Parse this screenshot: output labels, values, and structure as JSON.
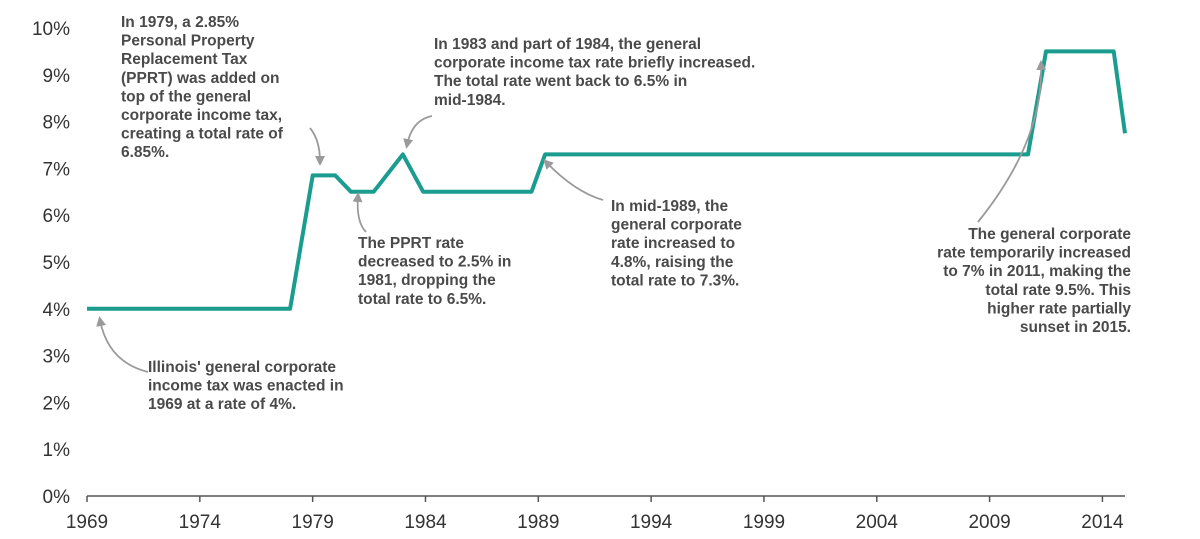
{
  "chart_data": {
    "type": "line",
    "title": "",
    "xlabel": "",
    "ylabel": "",
    "xlim": [
      1969,
      2015
    ],
    "ylim": [
      0,
      10
    ],
    "x_ticks": [
      "1969",
      "1974",
      "1979",
      "1984",
      "1989",
      "1994",
      "1999",
      "2004",
      "2009",
      "2014"
    ],
    "y_ticks": [
      "0%",
      "1%",
      "2%",
      "3%",
      "4%",
      "5%",
      "6%",
      "7%",
      "8%",
      "9%",
      "10%"
    ],
    "grid": false,
    "line_color": "#1a9c8f",
    "series": [
      {
        "name": "",
        "x": [
          1969,
          1978,
          1979,
          1980,
          1980.7,
          1981.7,
          1983,
          1983.9,
          1988.7,
          1989.3,
          2010.7,
          2011.5,
          2014.5,
          2015
        ],
        "y": [
          4.0,
          4.0,
          6.85,
          6.85,
          6.5,
          6.5,
          7.3,
          6.5,
          6.5,
          7.3,
          7.3,
          9.5,
          9.5,
          7.75
        ]
      }
    ],
    "annotations": [
      {
        "lines": [
          "Illinois' general corporate",
          "income tax was enacted in",
          "1969 at a rate of 4%."
        ]
      },
      {
        "lines": [
          "In 1979, a 2.85%",
          "Personal Property",
          "Replacement Tax",
          "(PPRT) was added on",
          "top of the general",
          "corporate income tax,",
          "creating a total rate of",
          "6.85%."
        ]
      },
      {
        "lines": [
          "The PPRT rate",
          "decreased to 2.5% in",
          "1981, dropping the",
          "total rate to 6.5%."
        ]
      },
      {
        "lines": [
          "In 1983 and part of 1984, the general",
          "corporate income tax rate briefly increased.",
          "The total rate went back to 6.5% in",
          "mid-1984."
        ]
      },
      {
        "lines": [
          "In mid-1989, the",
          "general corporate",
          "rate increased to",
          "4.8%, raising the",
          "total rate to 7.3%."
        ]
      },
      {
        "lines": [
          "The general corporate",
          "rate temporarily increased",
          "to 7% in 2011, making the",
          "total rate 9.5%. This",
          "higher rate partially",
          "sunset in 2015."
        ]
      }
    ]
  }
}
